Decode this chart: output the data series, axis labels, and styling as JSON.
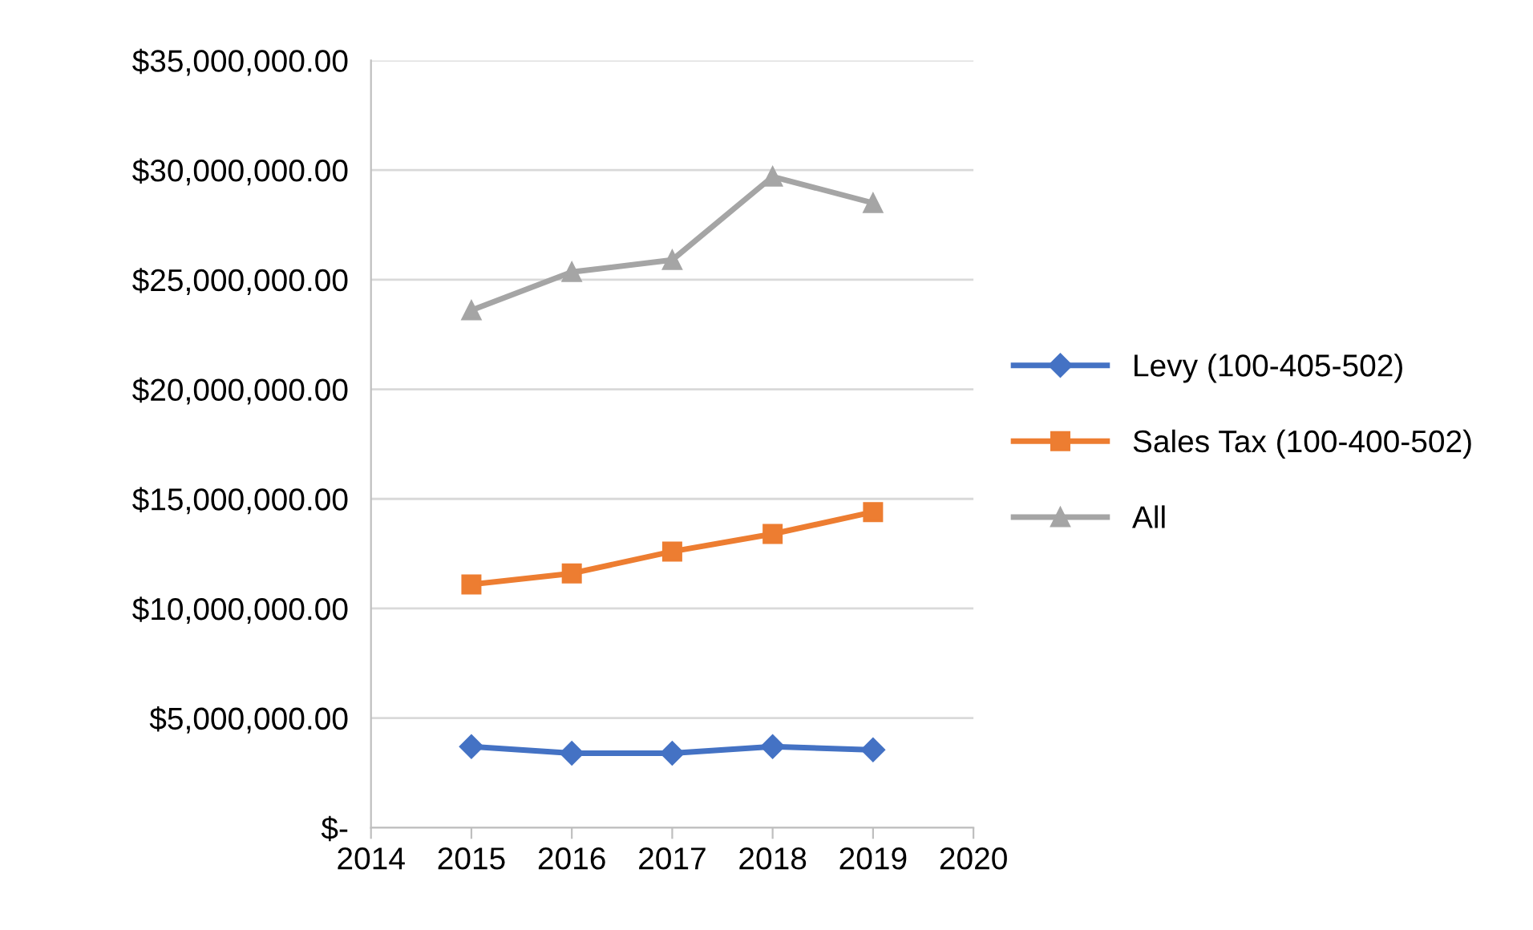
{
  "chart_data": {
    "type": "line",
    "x": [
      2015,
      2016,
      2017,
      2018,
      2019
    ],
    "series": [
      {
        "name": "Levy (100-405-502)",
        "color": "#4472c4",
        "marker": "diamond",
        "values": [
          3700000,
          3400000,
          3400000,
          3700000,
          3550000
        ]
      },
      {
        "name": "Sales Tax (100-400-502)",
        "color": "#ed7d31",
        "marker": "square",
        "values": [
          11100000,
          11600000,
          12600000,
          13400000,
          14400000
        ]
      },
      {
        "name": "All",
        "color": "#a5a5a5",
        "marker": "triangle",
        "values": [
          23600000,
          25350000,
          25900000,
          29700000,
          28500000
        ]
      }
    ],
    "xlim": [
      2014,
      2020
    ],
    "xticks": [
      2014,
      2015,
      2016,
      2017,
      2018,
      2019,
      2020
    ],
    "ylim": [
      0,
      35000000
    ],
    "yticks": [
      {
        "value": 0,
        "label": "$-"
      },
      {
        "value": 5000000,
        "label": "$5,000,000.00"
      },
      {
        "value": 10000000,
        "label": "$10,000,000.00"
      },
      {
        "value": 15000000,
        "label": "$15,000,000.00"
      },
      {
        "value": 20000000,
        "label": "$20,000,000.00"
      },
      {
        "value": 25000000,
        "label": "$25,000,000.00"
      },
      {
        "value": 30000000,
        "label": "$30,000,000.00"
      },
      {
        "value": 35000000,
        "label": "$35,000,000.00"
      }
    ],
    "grid": "y",
    "legend": "right",
    "line_style": "solid"
  }
}
